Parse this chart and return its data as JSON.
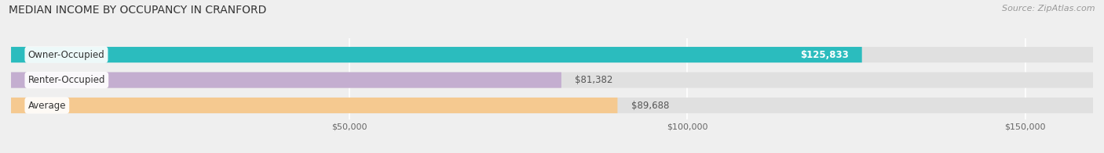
{
  "title": "MEDIAN INCOME BY OCCUPANCY IN CRANFORD",
  "source": "Source: ZipAtlas.com",
  "categories": [
    "Owner-Occupied",
    "Renter-Occupied",
    "Average"
  ],
  "values": [
    125833,
    81382,
    89688
  ],
  "bar_colors": [
    "#2bbcbe",
    "#c4aed0",
    "#f5c990"
  ],
  "label_colors": [
    "white",
    "black",
    "black"
  ],
  "value_labels": [
    "$125,833",
    "$81,382",
    "$89,688"
  ],
  "value_label_colors": [
    "white",
    "#666666",
    "#666666"
  ],
  "xlim": [
    0,
    160000
  ],
  "xticks": [
    50000,
    100000,
    150000
  ],
  "xtick_labels": [
    "$50,000",
    "$100,000",
    "$150,000"
  ],
  "background_color": "#efefef",
  "bar_bg_color": "#e0e0e0",
  "title_fontsize": 10,
  "source_fontsize": 8,
  "label_fontsize": 8.5,
  "tick_fontsize": 8
}
